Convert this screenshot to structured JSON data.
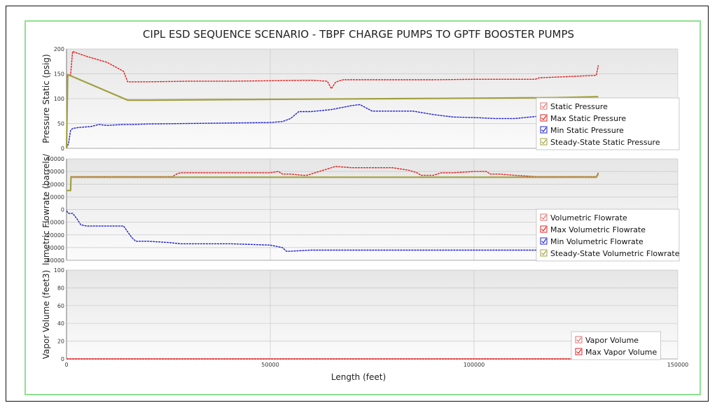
{
  "chart_data": {
    "type": "line",
    "title": "CIPL ESD SEQUENCE SCENARIO - TBPF CHARGE PUMPS TO GPTF BOOSTER PUMPS",
    "xlabel": "Length (feet)",
    "xlim": [
      0,
      150000
    ],
    "xticks": [
      0,
      50000,
      100000,
      150000
    ],
    "grid": true,
    "panels": [
      {
        "ylabel": "Pressure Static (psig)",
        "ylim": [
          0,
          200
        ],
        "yticks": [
          0,
          50,
          100,
          150,
          200
        ],
        "legend": "right",
        "series": [
          {
            "name": "Static Pressure",
            "color": "#e07070",
            "x": [],
            "y": []
          },
          {
            "name": "Max Static Pressure",
            "color": "#e02020",
            "x": [
              0,
              1000,
              1500,
              5000,
              10000,
              14000,
              15000,
              20000,
              30000,
              40000,
              50000,
              60000,
              64000,
              65000,
              66000,
              67000,
              68000,
              80000,
              90000,
              100000,
              110000,
              115000,
              116000,
              125000,
              130000,
              130500
            ],
            "y": [
              145,
              148,
              195,
              185,
              173,
              155,
              134,
              134,
              135,
              135,
              136,
              137,
              135,
              120,
              133,
              136,
              138,
              138,
              138,
              139,
              139,
              139,
              142,
              145,
              147,
              167
            ]
          },
          {
            "name": "Min Static Pressure",
            "color": "#2020d0",
            "x": [
              0,
              500,
              1000,
              1500,
              3000,
              6000,
              8000,
              10000,
              14000,
              16000,
              20000,
              30000,
              40000,
              50000,
              53000,
              55000,
              57000,
              60000,
              65000,
              70000,
              72000,
              75000,
              80000,
              85000,
              90000,
              95000,
              100000,
              105000,
              110000,
              115000,
              120000
            ],
            "y": [
              0,
              10,
              36,
              40,
              42,
              44,
              48,
              46,
              48,
              48,
              49,
              50,
              51,
              52,
              54,
              60,
              74,
              74,
              78,
              86,
              88,
              75,
              75,
              75,
              68,
              63,
              62,
              60,
              60,
              64,
              68
            ]
          },
          {
            "name": "Steady-State Static Pressure",
            "color": "#a0a040",
            "x": [
              0,
              300,
              1000,
              15000,
              20000,
              40000,
              60000,
              80000,
              100000,
              120000,
              130500
            ],
            "y": [
              0,
              148,
              146,
              97,
              97,
              98,
              99,
              100,
              101,
              102,
              104
            ]
          }
        ]
      },
      {
        "ylabel": "lumetric Flowrate (barrels/",
        "ylim": [
          -40000,
          40000
        ],
        "yticks": [
          -40000,
          -30000,
          -20000,
          -10000,
          0,
          10000,
          20000,
          30000,
          40000
        ],
        "legend": "right",
        "series": [
          {
            "name": "Volumetric  Flowrate",
            "color": "#e07070",
            "x": [],
            "y": []
          },
          {
            "name": "Max Volumetric Flowrate",
            "color": "#e02020",
            "x": [
              0,
              1000,
              1100,
              20000,
              26000,
              27000,
              28000,
              40000,
              50000,
              52000,
              53000,
              55000,
              58000,
              59000,
              61000,
              64000,
              66000,
              70000,
              75000,
              80000,
              84000,
              86000,
              87000,
              90000,
              92000,
              95000,
              100000,
              103000,
              104000,
              106000,
              110000,
              115000,
              120000,
              125000,
              130000,
              130500
            ],
            "y": [
              15000,
              15000,
              26000,
              26000,
              26000,
              28000,
              29000,
              29000,
              29000,
              30000,
              28000,
              28000,
              27000,
              27000,
              29000,
              32000,
              34000,
              33000,
              33000,
              33000,
              31000,
              29000,
              27000,
              27000,
              29000,
              29000,
              30000,
              30000,
              28000,
              28000,
              27000,
              26000,
              26000,
              26000,
              26000,
              29000
            ]
          },
          {
            "name": "Min Volumetric Flowrate",
            "color": "#2020d0",
            "x": [
              0,
              500,
              1500,
              2500,
              3500,
              5000,
              10000,
              14000,
              16000,
              17000,
              20000,
              25000,
              28000,
              30000,
              40000,
              50000,
              53000,
              54000,
              60000,
              80000,
              100000,
              120000
            ],
            "y": [
              -1000,
              -3000,
              -3000,
              -7000,
              -12000,
              -13000,
              -13000,
              -13000,
              -22000,
              -25000,
              -25000,
              -26000,
              -27000,
              -27000,
              -27000,
              -28000,
              -30000,
              -33000,
              -32000,
              -32000,
              -32000,
              -32000
            ]
          },
          {
            "name": "Steady-State Volumetric Flowrate",
            "color": "#a0a040",
            "x": [
              0,
              1000,
              1100,
              130000,
              130500
            ],
            "y": [
              15000,
              15000,
              25500,
              25500,
              28000
            ]
          }
        ]
      },
      {
        "ylabel": "Vapor Volume (feet3)",
        "ylim": [
          0,
          100
        ],
        "yticks": [
          0,
          20,
          40,
          60,
          80,
          100
        ],
        "legend": "right",
        "series": [
          {
            "name": "Vapor Volume",
            "color": "#e07070",
            "x": [
              0,
              130500
            ],
            "y": [
              0,
              0
            ]
          },
          {
            "name": "Max Vapor Volume",
            "color": "#e02020",
            "x": [
              0,
              130500
            ],
            "y": [
              0,
              0
            ]
          }
        ]
      }
    ]
  }
}
